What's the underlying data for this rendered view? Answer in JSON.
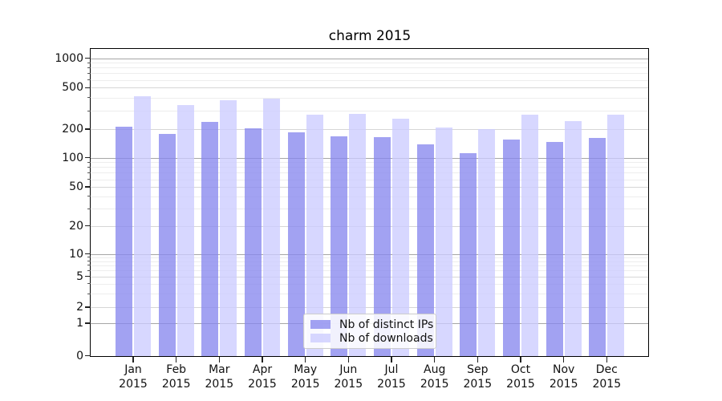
{
  "chart_data": {
    "type": "bar",
    "title": "charm 2015",
    "categories": [
      "Jan 2015",
      "Feb 2015",
      "Mar 2015",
      "Apr 2015",
      "May 2015",
      "Jun 2015",
      "Jul 2015",
      "Aug 2015",
      "Sep 2015",
      "Oct 2015",
      "Nov 2015",
      "Dec 2015"
    ],
    "series": [
      {
        "name": "Nb of distinct IPs",
        "color": "#8888ee",
        "values": [
          215,
          181,
          241,
          207,
          190,
          170,
          169,
          142,
          114,
          158,
          149,
          164
        ]
      },
      {
        "name": "Nb of downloads",
        "color": "#ccccff",
        "values": [
          420,
          347,
          384,
          400,
          279,
          287,
          258,
          211,
          205,
          282,
          245,
          282
        ]
      }
    ],
    "fill_alpha": 0.78,
    "yticks": [
      0,
      1,
      2,
      5,
      10,
      20,
      50,
      100,
      200,
      500,
      1000
    ],
    "ylim": [
      0,
      1400
    ],
    "yscale": "symlog",
    "grid": true,
    "legend_position": "lower center"
  }
}
